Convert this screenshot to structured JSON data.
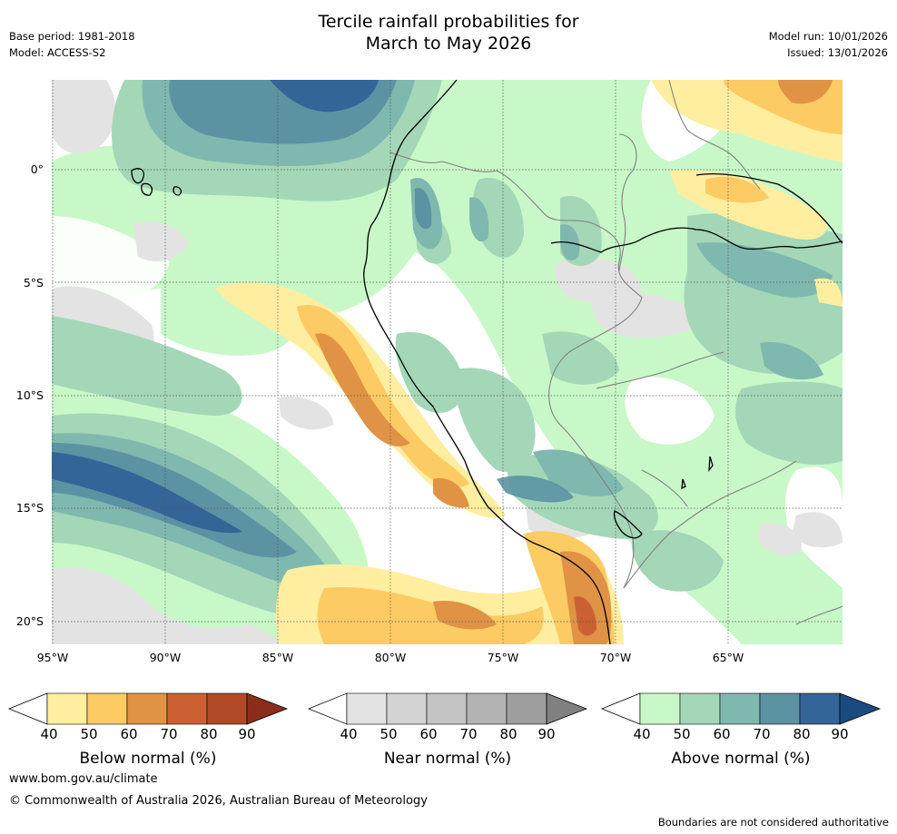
{
  "title": {
    "line1": "Tercile rainfall probabilities for",
    "line2": "March to May 2026"
  },
  "meta": {
    "base_period": "Base period: 1981-2018",
    "model": "Model: ACCESS-S2",
    "model_run": "Model run: 10/01/2026",
    "issued": "Issued: 13/01/2026"
  },
  "axes": {
    "lat_ticks": [
      "0°",
      "5°S",
      "10°S",
      "15°S",
      "20°S"
    ],
    "lon_ticks": [
      "95°W",
      "90°W",
      "85°W",
      "80°W",
      "75°W",
      "70°W",
      "65°W"
    ]
  },
  "legends": [
    {
      "title": "Below normal (%)",
      "ticks": [
        "40",
        "50",
        "60",
        "70",
        "80",
        "90"
      ],
      "colors": [
        "#ffeea0",
        "#fdcb63",
        "#e09245",
        "#cb6132",
        "#b04a26",
        "#8c2d1c"
      ]
    },
    {
      "title": "Near normal (%)",
      "ticks": [
        "40",
        "50",
        "60",
        "70",
        "80",
        "90"
      ],
      "colors": [
        "#e3e3e3",
        "#d3d3d3",
        "#c4c4c4",
        "#b3b3b3",
        "#9e9e9e",
        "#808080"
      ]
    },
    {
      "title": "Above normal (%)",
      "ticks": [
        "40",
        "50",
        "60",
        "70",
        "80",
        "90"
      ],
      "colors": [
        "#c8f8c8",
        "#a3d7b7",
        "#7fb8af",
        "#5b93a3",
        "#336598",
        "#194b80"
      ]
    }
  ],
  "footer": {
    "url": "www.bom.gov.au/climate",
    "copyright": "© Commonwealth of Australia 2026, Australian Bureau of Meteorology",
    "disclaimer": "Boundaries are not considered authoritative"
  }
}
